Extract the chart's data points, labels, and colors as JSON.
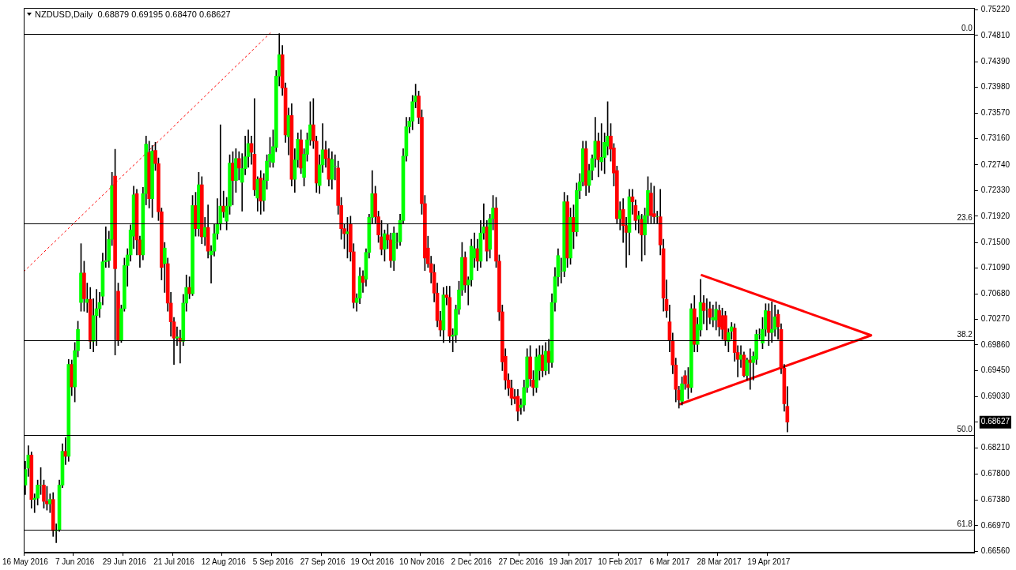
{
  "chart_data": {
    "type": "candlestick",
    "title": "NZDUSD,Daily  0.68879 0.69195 0.68470 0.68627",
    "categories": [
      "16 May 2016",
      null,
      null,
      null,
      null,
      null,
      null,
      null,
      null,
      null,
      null,
      null,
      null,
      null,
      null,
      null,
      "7 Jun 2016",
      null,
      null,
      null,
      null,
      null,
      null,
      null,
      null,
      null,
      null,
      null,
      null,
      null,
      null,
      null,
      "29 Jun 2016",
      null,
      null,
      null,
      null,
      null,
      null,
      null,
      null,
      null,
      null,
      null,
      null,
      null,
      null,
      null,
      "21 Jul 2016",
      null,
      null,
      null,
      null,
      null,
      null,
      null,
      null,
      null,
      null,
      null,
      null,
      null,
      null,
      null,
      "12 Aug 2016",
      null,
      null,
      null,
      null,
      null,
      null,
      null,
      null,
      null,
      null,
      null,
      null,
      null,
      null,
      null,
      "5 Sep 2016",
      null,
      null,
      null,
      null,
      null,
      null,
      null,
      null,
      null,
      null,
      null,
      null,
      null,
      null,
      null,
      "27 Sep 2016",
      null,
      null,
      null,
      null,
      null,
      null,
      null,
      null,
      null,
      null,
      null,
      null,
      null,
      null,
      null,
      "19 Oct 2016",
      null,
      null,
      null,
      null,
      null,
      null,
      null,
      null,
      null,
      null,
      null,
      null,
      null,
      null,
      null,
      "10 Nov 2016",
      null,
      null,
      null,
      null,
      null,
      null,
      null,
      null,
      null,
      null,
      null,
      null,
      null,
      null,
      null,
      "2 Dec 2016",
      null,
      null,
      null,
      null,
      null,
      null,
      null,
      null,
      null,
      null,
      null,
      null,
      null,
      null,
      null,
      "27 Dec 2016",
      null,
      null,
      null,
      null,
      null,
      null,
      null,
      null,
      null,
      null,
      null,
      null,
      null,
      null,
      null,
      "19 Jan 2017",
      null,
      null,
      null,
      null,
      null,
      null,
      null,
      null,
      null,
      null,
      null,
      null,
      null,
      null,
      null,
      "10 Feb 2017",
      null,
      null,
      null,
      null,
      null,
      null,
      null,
      null,
      null,
      null,
      null,
      null,
      null,
      null,
      null,
      "6 Mar 2017",
      null,
      null,
      null,
      null,
      null,
      null,
      null,
      null,
      null,
      null,
      null,
      null,
      null,
      null,
      null,
      "28 Mar 2017",
      null,
      null,
      null,
      null,
      null,
      null,
      null,
      null,
      null,
      null,
      null,
      null,
      null,
      null,
      null,
      "19 Apr 2017",
      null,
      null,
      null,
      null,
      null,
      null,
      null,
      null,
      null,
      null,
      null,
      null,
      null,
      null,
      null,
      null,
      null,
      null,
      null,
      null,
      null,
      null,
      null,
      null,
      null,
      null,
      null,
      null,
      null,
      null,
      null,
      null,
      null,
      null,
      null,
      null,
      null,
      null,
      null,
      null,
      null,
      null,
      null,
      null,
      null,
      null,
      null,
      null,
      null,
      null,
      null,
      null,
      null,
      null,
      null,
      null,
      null,
      null,
      null,
      null,
      null,
      null,
      null,
      null,
      null,
      null
    ],
    "ohlc": [
      [
        0.6762,
        0.68,
        0.6747,
        0.6787
      ],
      [
        0.6789,
        0.6825,
        0.6776,
        0.681
      ],
      [
        0.681,
        0.6815,
        0.6725,
        0.6739
      ],
      [
        0.6739,
        0.6748,
        0.6718,
        0.6741
      ],
      [
        0.6741,
        0.677,
        0.673,
        0.6762
      ],
      [
        0.6762,
        0.679,
        0.6747,
        0.6762
      ],
      [
        0.6762,
        0.677,
        0.6725,
        0.6736
      ],
      [
        0.6736,
        0.676,
        0.6722,
        0.6732
      ],
      [
        0.6732,
        0.6748,
        0.6718,
        0.6739
      ],
      [
        0.6739,
        0.675,
        0.668,
        0.6689
      ],
      [
        0.6689,
        0.67,
        0.667,
        0.669
      ],
      [
        0.669,
        0.677,
        0.6688,
        0.6762
      ],
      [
        0.6762,
        0.6828,
        0.6758,
        0.6816
      ],
      [
        0.6816,
        0.6838,
        0.6795,
        0.6808
      ],
      [
        0.6808,
        0.6963,
        0.68,
        0.6955
      ],
      [
        0.6955,
        0.6962,
        0.6905,
        0.6919
      ],
      [
        0.6919,
        0.699,
        0.6895,
        0.6977
      ],
      [
        0.6977,
        0.7024,
        0.6967,
        0.7011
      ],
      [
        0.7054,
        0.7148,
        0.704,
        0.7101
      ],
      [
        0.7101,
        0.712,
        0.704,
        0.706
      ],
      [
        0.7054,
        0.7085,
        0.7038,
        0.7059
      ],
      [
        0.7059,
        0.7078,
        0.698,
        0.6992
      ],
      [
        0.6992,
        0.706,
        0.6975,
        0.7033
      ],
      [
        0.7033,
        0.7075,
        0.6985,
        0.7044
      ],
      [
        0.7044,
        0.707,
        0.703,
        0.7054
      ],
      [
        0.7064,
        0.7133,
        0.705,
        0.7119
      ],
      [
        0.7119,
        0.7175,
        0.711,
        0.7121
      ],
      [
        0.7121,
        0.7168,
        0.711,
        0.7155
      ],
      [
        0.7155,
        0.7262,
        0.7145,
        0.7241
      ],
      [
        0.7256,
        0.7299,
        0.697,
        0.7108
      ],
      [
        0.7072,
        0.7085,
        0.6985,
        0.6994
      ],
      [
        0.6994,
        0.705,
        0.699,
        0.7044
      ],
      [
        0.7044,
        0.7125,
        0.704,
        0.7113
      ],
      [
        0.7113,
        0.714,
        0.708,
        0.713
      ],
      [
        0.713,
        0.7178,
        0.712,
        0.717
      ],
      [
        0.716,
        0.724,
        0.714,
        0.7226
      ],
      [
        0.7228,
        0.7235,
        0.713,
        0.7154
      ],
      [
        0.7154,
        0.716,
        0.711,
        0.713
      ],
      [
        0.713,
        0.7238,
        0.7122,
        0.7228
      ],
      [
        0.7228,
        0.732,
        0.721,
        0.7307
      ],
      [
        0.7294,
        0.7312,
        0.7205,
        0.722
      ],
      [
        0.722,
        0.7305,
        0.719,
        0.7296
      ],
      [
        0.7297,
        0.731,
        0.7265,
        0.7276
      ],
      [
        0.7276,
        0.7285,
        0.7185,
        0.7199
      ],
      [
        0.7199,
        0.7205,
        0.709,
        0.711
      ],
      [
        0.7116,
        0.715,
        0.707,
        0.7141
      ],
      [
        0.7116,
        0.7125,
        0.704,
        0.7053
      ],
      [
        0.7053,
        0.707,
        0.7,
        0.7023
      ],
      [
        0.7023,
        0.703,
        0.6955,
        0.6997
      ],
      [
        0.6997,
        0.7015,
        0.6985,
        0.6999
      ],
      [
        0.6997,
        0.701,
        0.6957,
        0.6992
      ],
      [
        0.6992,
        0.7067,
        0.6985,
        0.7053
      ],
      [
        0.7053,
        0.7098,
        0.704,
        0.7078
      ],
      [
        0.7078,
        0.7095,
        0.706,
        0.7068
      ],
      [
        0.7068,
        0.7225,
        0.7065,
        0.7209
      ],
      [
        0.7209,
        0.723,
        0.716,
        0.7172
      ],
      [
        0.7172,
        0.7262,
        0.716,
        0.7242
      ],
      [
        0.7242,
        0.7255,
        0.7148,
        0.7159
      ],
      [
        0.7159,
        0.719,
        0.7145,
        0.7174
      ],
      [
        0.7174,
        0.721,
        0.7125,
        0.7136
      ],
      [
        0.713,
        0.7145,
        0.7085,
        0.7136
      ],
      [
        0.7136,
        0.718,
        0.7128,
        0.7164
      ],
      [
        0.7164,
        0.722,
        0.7155,
        0.718
      ],
      [
        0.718,
        0.7338,
        0.717,
        0.7208
      ],
      [
        0.7208,
        0.7232,
        0.719,
        0.7199
      ],
      [
        0.7184,
        0.7222,
        0.717,
        0.7208
      ],
      [
        0.7208,
        0.729,
        0.7195,
        0.7277
      ],
      [
        0.7277,
        0.7295,
        0.721,
        0.7249
      ],
      [
        0.7249,
        0.73,
        0.723,
        0.7284
      ],
      [
        0.7284,
        0.7295,
        0.725,
        0.7269
      ],
      [
        0.7246,
        0.7292,
        0.72,
        0.7268
      ],
      [
        0.7268,
        0.732,
        0.7258,
        0.7287
      ],
      [
        0.7287,
        0.733,
        0.727,
        0.7308
      ],
      [
        0.7308,
        0.732,
        0.7275,
        0.7294
      ],
      [
        0.7291,
        0.738,
        0.7225,
        0.7234
      ],
      [
        0.7221,
        0.7255,
        0.72,
        0.7251
      ],
      [
        0.7253,
        0.7265,
        0.7195,
        0.7216
      ],
      [
        0.7217,
        0.726,
        0.72,
        0.7249
      ],
      [
        0.7249,
        0.729,
        0.7235,
        0.728
      ],
      [
        0.728,
        0.7318,
        0.727,
        0.7291
      ],
      [
        0.7278,
        0.733,
        0.727,
        0.7303
      ],
      [
        0.7302,
        0.7425,
        0.7295,
        0.7416
      ],
      [
        0.7416,
        0.7484,
        0.74,
        0.745
      ],
      [
        0.745,
        0.7465,
        0.7385,
        0.7397
      ],
      [
        0.7397,
        0.7405,
        0.731,
        0.7322
      ],
      [
        0.7319,
        0.7365,
        0.729,
        0.7353
      ],
      [
        0.7353,
        0.7372,
        0.724,
        0.7251
      ],
      [
        0.7251,
        0.73,
        0.723,
        0.7282
      ],
      [
        0.7282,
        0.7325,
        0.727,
        0.7315
      ],
      [
        0.7314,
        0.733,
        0.726,
        0.7269
      ],
      [
        0.7254,
        0.73,
        0.724,
        0.7291
      ],
      [
        0.7291,
        0.7325,
        0.728,
        0.7314
      ],
      [
        0.7314,
        0.7375,
        0.7305,
        0.7338
      ],
      [
        0.7338,
        0.738,
        0.73,
        0.7312
      ],
      [
        0.7312,
        0.732,
        0.723,
        0.7245
      ],
      [
        0.7241,
        0.729,
        0.7228,
        0.7274
      ],
      [
        0.7274,
        0.734,
        0.7262,
        0.7298
      ],
      [
        0.7298,
        0.7312,
        0.727,
        0.7284
      ],
      [
        0.7284,
        0.73,
        0.724,
        0.7251
      ],
      [
        0.7251,
        0.7295,
        0.7235,
        0.7283
      ],
      [
        0.7272,
        0.729,
        0.725,
        0.7272
      ],
      [
        0.7269,
        0.728,
        0.7195,
        0.7209
      ],
      [
        0.7209,
        0.7222,
        0.7155,
        0.7172
      ],
      [
        0.7172,
        0.718,
        0.714,
        0.7164
      ],
      [
        0.7164,
        0.719,
        0.7125,
        0.7167
      ],
      [
        0.718,
        0.7192,
        0.712,
        0.7135
      ],
      [
        0.7135,
        0.7148,
        0.7045,
        0.7054
      ],
      [
        0.7054,
        0.7068,
        0.704,
        0.7061
      ],
      [
        0.7061,
        0.711,
        0.7052,
        0.7096
      ],
      [
        0.7096,
        0.7105,
        0.707,
        0.7086
      ],
      [
        0.7091,
        0.714,
        0.708,
        0.7134
      ],
      [
        0.7134,
        0.7195,
        0.7125,
        0.719
      ],
      [
        0.719,
        0.7265,
        0.718,
        0.7228
      ],
      [
        0.7228,
        0.724,
        0.718,
        0.7191
      ],
      [
        0.7191,
        0.72,
        0.715,
        0.7162
      ],
      [
        0.7159,
        0.7185,
        0.713,
        0.7139
      ],
      [
        0.7139,
        0.717,
        0.712,
        0.7164
      ],
      [
        0.7162,
        0.718,
        0.714,
        0.7154
      ],
      [
        0.7154,
        0.7165,
        0.711,
        0.7121
      ],
      [
        0.7121,
        0.7175,
        0.7105,
        0.7165
      ],
      [
        0.715,
        0.7165,
        0.714,
        0.715
      ],
      [
        0.7151,
        0.7195,
        0.7145,
        0.7185
      ],
      [
        0.7185,
        0.73,
        0.718,
        0.7288
      ],
      [
        0.7288,
        0.735,
        0.728,
        0.7335
      ],
      [
        0.7335,
        0.735,
        0.7325,
        0.7344
      ],
      [
        0.7344,
        0.7385,
        0.733,
        0.7375
      ],
      [
        0.7375,
        0.7403,
        0.7365,
        0.7384
      ],
      [
        0.7384,
        0.7392,
        0.734,
        0.735
      ],
      [
        0.735,
        0.7362,
        0.7195,
        0.7212
      ],
      [
        0.7212,
        0.7225,
        0.7105,
        0.7125
      ],
      [
        0.7141,
        0.716,
        0.711,
        0.7116
      ],
      [
        0.7116,
        0.7128,
        0.7085,
        0.7102
      ],
      [
        0.7102,
        0.7115,
        0.7055,
        0.7069
      ],
      [
        0.7069,
        0.7085,
        0.7015,
        0.7025
      ],
      [
        0.7025,
        0.704,
        0.7,
        0.701
      ],
      [
        0.701,
        0.7078,
        0.699,
        0.7066
      ],
      [
        0.7066,
        0.708,
        0.705,
        0.7062
      ],
      [
        0.7062,
        0.708,
        0.699,
        0.7
      ],
      [
        0.7,
        0.7012,
        0.6975,
        0.7002
      ],
      [
        0.7002,
        0.705,
        0.699,
        0.7043
      ],
      [
        0.7043,
        0.7088,
        0.7035,
        0.7074
      ],
      [
        0.7074,
        0.715,
        0.7065,
        0.7126
      ],
      [
        0.7126,
        0.7135,
        0.707,
        0.7082
      ],
      [
        0.7082,
        0.7095,
        0.705,
        0.709
      ],
      [
        0.709,
        0.7155,
        0.708,
        0.7144
      ],
      [
        0.7125,
        0.7165,
        0.711,
        0.714
      ],
      [
        0.714,
        0.7155,
        0.7105,
        0.712
      ],
      [
        0.712,
        0.7185,
        0.711,
        0.7165
      ],
      [
        0.7165,
        0.7212,
        0.7155,
        0.7175
      ],
      [
        0.7175,
        0.7185,
        0.712,
        0.7136
      ],
      [
        0.7139,
        0.7195,
        0.7125,
        0.7188
      ],
      [
        0.7188,
        0.7225,
        0.717,
        0.7205
      ],
      [
        0.7205,
        0.7222,
        0.711,
        0.712
      ],
      [
        0.712,
        0.713,
        0.7025,
        0.7039
      ],
      [
        0.7039,
        0.705,
        0.6945,
        0.6959
      ],
      [
        0.6968,
        0.698,
        0.6915,
        0.693
      ],
      [
        0.693,
        0.694,
        0.6905,
        0.6917
      ],
      [
        0.6917,
        0.693,
        0.689,
        0.6901
      ],
      [
        0.6903,
        0.6915,
        0.6892,
        0.69
      ],
      [
        0.6904,
        0.6915,
        0.6865,
        0.688
      ],
      [
        0.6886,
        0.69,
        0.6875,
        0.689
      ],
      [
        0.689,
        0.693,
        0.688,
        0.6918
      ],
      [
        0.6918,
        0.698,
        0.691,
        0.6967
      ],
      [
        0.6967,
        0.6985,
        0.692,
        0.6932
      ],
      [
        0.693,
        0.6945,
        0.6905,
        0.6918
      ],
      [
        0.6918,
        0.698,
        0.691,
        0.6967
      ],
      [
        0.6945,
        0.6985,
        0.693,
        0.697
      ],
      [
        0.697,
        0.6985,
        0.6935,
        0.6945
      ],
      [
        0.6945,
        0.699,
        0.6938,
        0.6976
      ],
      [
        0.6976,
        0.6995,
        0.694,
        0.6958
      ],
      [
        0.6958,
        0.7068,
        0.695,
        0.7054
      ],
      [
        0.7054,
        0.711,
        0.704,
        0.7095
      ],
      [
        0.7095,
        0.714,
        0.708,
        0.7129
      ],
      [
        0.7104,
        0.7125,
        0.7085,
        0.7104
      ],
      [
        0.7104,
        0.723,
        0.7095,
        0.7215
      ],
      [
        0.7215,
        0.7225,
        0.711,
        0.7125
      ],
      [
        0.7125,
        0.7205,
        0.7115,
        0.719
      ],
      [
        0.719,
        0.721,
        0.714,
        0.7167
      ],
      [
        0.7167,
        0.7245,
        0.716,
        0.7233
      ],
      [
        0.7233,
        0.726,
        0.722,
        0.7247
      ],
      [
        0.7247,
        0.7312,
        0.724,
        0.73
      ],
      [
        0.73,
        0.7312,
        0.7225,
        0.7241
      ],
      [
        0.7241,
        0.7275,
        0.723,
        0.7265
      ],
      [
        0.7265,
        0.729,
        0.725,
        0.7284
      ],
      [
        0.7284,
        0.735,
        0.727,
        0.7312
      ],
      [
        0.7312,
        0.7325,
        0.7255,
        0.7282
      ],
      [
        0.7279,
        0.734,
        0.7265,
        0.7286
      ],
      [
        0.7286,
        0.7325,
        0.726,
        0.731
      ],
      [
        0.7304,
        0.7375,
        0.729,
        0.732
      ],
      [
        0.732,
        0.734,
        0.728,
        0.7299
      ],
      [
        0.7301,
        0.7308,
        0.724,
        0.7261
      ],
      [
        0.7265,
        0.7272,
        0.718,
        0.7188
      ],
      [
        0.7188,
        0.7215,
        0.717,
        0.7201
      ],
      [
        0.7203,
        0.722,
        0.715,
        0.7177
      ],
      [
        0.7177,
        0.719,
        0.711,
        0.7166
      ],
      [
        0.7166,
        0.7235,
        0.713,
        0.7223
      ],
      [
        0.7223,
        0.7235,
        0.7195,
        0.7215
      ],
      [
        0.7209,
        0.7218,
        0.717,
        0.7185
      ],
      [
        0.7187,
        0.72,
        0.7165,
        0.7193
      ],
      [
        0.7187,
        0.7195,
        0.712,
        0.7162
      ],
      [
        0.7162,
        0.7205,
        0.713,
        0.7193
      ],
      [
        0.7193,
        0.7255,
        0.718,
        0.7233
      ],
      [
        0.7229,
        0.7245,
        0.718,
        0.7193
      ],
      [
        0.7196,
        0.724,
        0.718,
        0.7191
      ],
      [
        0.7191,
        0.72,
        0.718,
        0.7191
      ],
      [
        0.7191,
        0.7235,
        0.713,
        0.7146
      ],
      [
        0.714,
        0.7155,
        0.704,
        0.7061
      ],
      [
        0.7059,
        0.709,
        0.703,
        0.7041
      ],
      [
        0.7023,
        0.705,
        0.6975,
        0.6993
      ],
      [
        0.6992,
        0.7005,
        0.694,
        0.6954
      ],
      [
        0.6954,
        0.6965,
        0.6895,
        0.6915
      ],
      [
        0.6914,
        0.692,
        0.6885,
        0.6898
      ],
      [
        0.6896,
        0.6935,
        0.689,
        0.6924
      ],
      [
        0.6937,
        0.6945,
        0.6915,
        0.6924
      ],
      [
        0.6923,
        0.695,
        0.69,
        0.6918
      ],
      [
        0.6918,
        0.7052,
        0.691,
        0.7044
      ],
      [
        0.7044,
        0.7065,
        0.6975,
        0.6987
      ],
      [
        0.6987,
        0.703,
        0.6975,
        0.7019
      ],
      [
        0.701,
        0.7091,
        0.7,
        0.7054
      ],
      [
        0.7053,
        0.7065,
        0.702,
        0.7041
      ],
      [
        0.7043,
        0.706,
        0.701,
        0.7043
      ],
      [
        0.7044,
        0.7055,
        0.702,
        0.703
      ],
      [
        0.7026,
        0.705,
        0.7015,
        0.703
      ],
      [
        0.7026,
        0.7055,
        0.701,
        0.7043
      ],
      [
        0.7041,
        0.705,
        0.7,
        0.7015
      ],
      [
        0.7033,
        0.7045,
        0.6995,
        0.7011
      ],
      [
        0.7033,
        0.704,
        0.6985,
        0.6994
      ],
      [
        0.6992,
        0.7012,
        0.6975,
        0.7006
      ],
      [
        0.7008,
        0.7022,
        0.6995,
        0.7015
      ],
      [
        0.7013,
        0.702,
        0.696,
        0.6974
      ],
      [
        0.6974,
        0.6985,
        0.6935,
        0.6963
      ],
      [
        0.6963,
        0.6985,
        0.695,
        0.697
      ],
      [
        0.697,
        0.6975,
        0.6935,
        0.6937
      ],
      [
        0.6937,
        0.6965,
        0.693,
        0.6962
      ],
      [
        0.6962,
        0.698,
        0.6915,
        0.6958
      ],
      [
        0.6958,
        0.6975,
        0.693,
        0.6968
      ],
      [
        0.6963,
        0.701,
        0.6955,
        0.7003
      ],
      [
        0.7003,
        0.7012,
        0.6995,
        0.7003
      ],
      [
        0.6989,
        0.703,
        0.698,
        0.7011
      ],
      [
        0.7011,
        0.7052,
        0.7,
        0.7041
      ],
      [
        0.704,
        0.7052,
        0.6985,
        0.7006
      ],
      [
        0.7006,
        0.7055,
        0.699,
        0.7011
      ],
      [
        0.7011,
        0.705,
        0.7,
        0.7031
      ],
      [
        0.7035,
        0.7042,
        0.6995,
        0.7015
      ],
      [
        0.7011,
        0.702,
        0.694,
        0.6949
      ],
      [
        0.6949,
        0.6955,
        0.688,
        0.6892
      ],
      [
        0.68879,
        0.69195,
        0.6847,
        0.68627
      ],
      null,
      null,
      null,
      null,
      null,
      null,
      null,
      null,
      null,
      null,
      null,
      null,
      null,
      null,
      null,
      null,
      null,
      null,
      null,
      null,
      null,
      null,
      null,
      null,
      null,
      null,
      null,
      null,
      null,
      null,
      null,
      null,
      null,
      null,
      null,
      null,
      null,
      null,
      null,
      null,
      null,
      null,
      null,
      null,
      null,
      null,
      null,
      null,
      null,
      null,
      null,
      null,
      null,
      null,
      null,
      null,
      null,
      null,
      null,
      null
    ],
    "colors": [
      "#00ff00",
      "#00ff00",
      "#ff0000",
      "#00ff00",
      "#00ff00",
      "#00ff00",
      "#ff0000",
      "#ff0000",
      "#00ff00",
      "#ff0000",
      "#00ff00",
      "#00ff00",
      "#00ff00",
      "#ff0000",
      "#00ff00",
      "#ff0000",
      "#00ff00",
      "#00ff00",
      "#00ff00",
      "#ff0000",
      "#00ff00",
      "#ff0000",
      "#00ff00",
      "#00ff00",
      "#00ff00",
      "#00ff00",
      "#00ff00",
      "#00ff00",
      "#00ff00",
      "#ff0000",
      "#ff0000",
      "#00ff00",
      "#00ff00",
      "#00ff00",
      "#00ff00",
      "#00ff00",
      "#ff0000",
      "#ff0000",
      "#00ff00",
      "#00ff00",
      "#ff0000",
      "#00ff00",
      "#ff0000",
      "#ff0000",
      "#ff0000",
      "#00ff00",
      "#ff0000",
      "#ff0000",
      "#ff0000",
      "#00ff00",
      "#ff0000",
      "#00ff00",
      "#00ff00",
      "#ff0000",
      "#00ff00",
      "#ff0000",
      "#00ff00",
      "#ff0000",
      "#00ff00",
      "#ff0000",
      "#00ff00",
      "#00ff00",
      "#00ff00",
      "#00ff00",
      "#ff0000",
      "#00ff00",
      "#00ff00",
      "#ff0000",
      "#00ff00",
      "#ff0000",
      "#00ff00",
      "#00ff00",
      "#00ff00",
      "#ff0000",
      "#ff0000",
      "#00ff00",
      "#ff0000",
      "#00ff00",
      "#00ff00",
      "#00ff00",
      "#00ff00",
      "#00ff00",
      "#00ff00",
      "#ff0000",
      "#ff0000",
      "#00ff00",
      "#ff0000",
      "#00ff00",
      "#00ff00",
      "#ff0000",
      "#00ff00",
      "#00ff00",
      "#00ff00",
      "#ff0000",
      "#ff0000",
      "#00ff00",
      "#00ff00",
      "#ff0000",
      "#ff0000",
      "#00ff00",
      "#00ff00",
      "#ff0000",
      "#ff0000",
      "#ff0000",
      "#00ff00",
      "#ff0000",
      "#ff0000",
      "#00ff00",
      "#00ff00",
      "#ff0000",
      "#00ff00",
      "#00ff00",
      "#00ff00",
      "#ff0000",
      "#ff0000",
      "#ff0000",
      "#00ff00",
      "#ff0000",
      "#ff0000",
      "#00ff00",
      "#00ff00",
      "#00ff00",
      "#00ff00",
      "#00ff00",
      "#00ff00",
      "#00ff00",
      "#00ff00",
      "#ff0000",
      "#ff0000",
      "#ff0000",
      "#ff0000",
      "#ff0000",
      "#ff0000",
      "#ff0000",
      "#ff0000",
      "#00ff00",
      "#ff0000",
      "#ff0000",
      "#00ff00",
      "#00ff00",
      "#00ff00",
      "#00ff00",
      "#ff0000",
      "#00ff00",
      "#00ff00",
      "#00ff00",
      "#ff0000",
      "#00ff00",
      "#00ff00",
      "#ff0000",
      "#00ff00",
      "#00ff00",
      "#ff0000",
      "#ff0000",
      "#ff0000",
      "#ff0000",
      "#ff0000",
      "#ff0000",
      "#ff0000",
      "#ff0000",
      "#00ff00",
      "#00ff00",
      "#00ff00",
      "#ff0000",
      "#ff0000",
      "#00ff00",
      "#00ff00",
      "#ff0000",
      "#00ff00",
      "#ff0000",
      "#00ff00",
      "#00ff00",
      "#00ff00",
      "#00ff00",
      "#00ff00",
      "#ff0000",
      "#00ff00",
      "#ff0000",
      "#00ff00",
      "#00ff00",
      "#00ff00",
      "#ff0000",
      "#00ff00",
      "#00ff00",
      "#00ff00",
      "#ff0000",
      "#00ff00",
      "#00ff00",
      "#00ff00",
      "#ff0000",
      "#ff0000",
      "#ff0000",
      "#00ff00",
      "#ff0000",
      "#ff0000",
      "#00ff00",
      "#ff0000",
      "#ff0000",
      "#00ff00",
      "#ff0000",
      "#00ff00",
      "#00ff00",
      "#ff0000",
      "#ff0000",
      "#00ff00",
      "#ff0000",
      "#ff0000",
      "#ff0000",
      "#ff0000",
      "#ff0000",
      "#ff0000",
      "#ff0000",
      "#00ff00",
      "#ff0000",
      "#ff0000",
      "#00ff00",
      "#ff0000",
      "#00ff00",
      "#00ff00",
      "#ff0000",
      "#00ff00",
      "#ff0000",
      "#00ff00",
      "#00ff00",
      "#ff0000",
      "#ff0000",
      "#ff0000",
      "#00ff00",
      "#00ff00",
      "#ff0000",
      "#ff0000",
      "#00ff00",
      "#ff0000",
      "#00ff00",
      "#ff0000",
      "#00ff00",
      "#00ff00",
      "#00ff00",
      "#00ff00",
      "#00ff00",
      "#ff0000",
      "#00ff00",
      "#00ff00",
      "#ff0000",
      "#ff0000",
      "#ff0000",
      "#ff0000",
      null,
      null,
      null,
      null,
      null,
      null,
      null,
      null,
      null,
      null,
      null,
      null,
      null,
      null,
      null,
      null,
      null,
      null,
      null,
      null,
      null,
      null,
      null,
      null,
      null,
      null,
      null,
      null,
      null,
      null,
      null,
      null,
      null,
      null,
      null,
      null,
      null,
      null,
      null,
      null,
      null,
      null,
      null,
      null,
      null,
      null,
      null,
      null,
      null,
      null,
      null,
      null,
      null,
      null,
      null,
      null,
      null,
      null,
      null,
      null
    ],
    "ylim": [
      0.6654,
      0.7525
    ],
    "yticks": [
      {
        "value": 0.6656,
        "label": "0.66560"
      },
      {
        "value": 0.6697,
        "label": "0.66970"
      },
      {
        "value": 0.6738,
        "label": "0.67380"
      },
      {
        "value": 0.678,
        "label": "0.67800"
      },
      {
        "value": 0.6821,
        "label": "0.68210"
      },
      {
        "value": 0.68627,
        "label": "0.68627"
      },
      {
        "value": 0.6903,
        "label": "0.69030"
      },
      {
        "value": 0.6945,
        "label": "0.69450"
      },
      {
        "value": 0.6986,
        "label": "0.69860"
      },
      {
        "value": 0.7027,
        "label": "0.70270"
      },
      {
        "value": 0.7068,
        "label": "0.70680"
      },
      {
        "value": 0.7109,
        "label": "0.71090"
      },
      {
        "value": 0.715,
        "label": "0.71500"
      },
      {
        "value": 0.7192,
        "label": "0.71920"
      },
      {
        "value": 0.7233,
        "label": "0.72330"
      },
      {
        "value": 0.7274,
        "label": "0.72740"
      },
      {
        "value": 0.7316,
        "label": "0.73160"
      },
      {
        "value": 0.7357,
        "label": "0.73570"
      },
      {
        "value": 0.7398,
        "label": "0.73980"
      },
      {
        "value": 0.7439,
        "label": "0.74390"
      },
      {
        "value": 0.7481,
        "label": "0.74810"
      },
      {
        "value": 0.7522,
        "label": "0.75220"
      }
    ],
    "ref_lines": [
      {
        "axis": "y",
        "value": 0.7483,
        "color": "#000000"
      },
      {
        "axis": "y",
        "value": 0.7181,
        "color": "#000000"
      },
      {
        "axis": "y",
        "value": 0.6994,
        "color": "#000000"
      },
      {
        "axis": "y",
        "value": 0.6842,
        "color": "#000000"
      },
      {
        "axis": "y",
        "value": 0.669,
        "color": "#000000"
      }
    ],
    "annotations": [
      {
        "text": "0.0",
        "y": 0.7483
      },
      {
        "text": "23.6",
        "y": 0.7181
      },
      {
        "text": "38.2",
        "y": 0.6994
      },
      {
        "text": "50.0",
        "y": 0.6842
      },
      {
        "text": "61.8",
        "y": 0.669
      }
    ]
  }
}
